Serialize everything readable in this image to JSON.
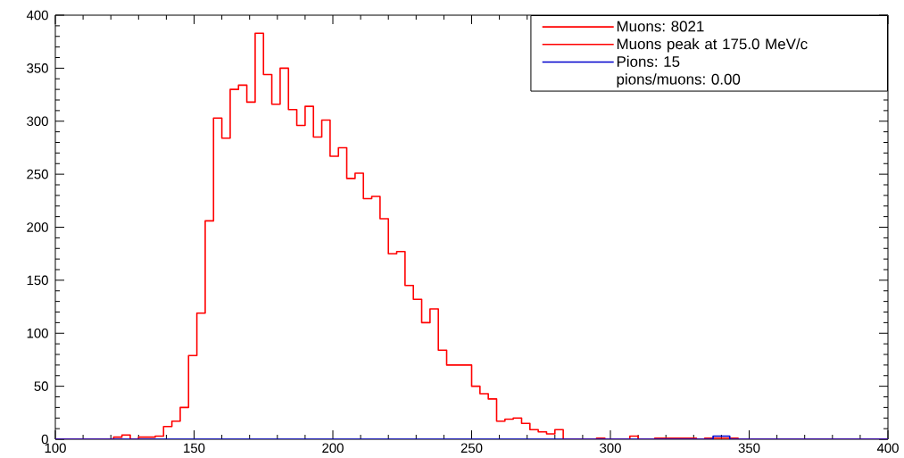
{
  "chart_data": {
    "type": "histogram",
    "bins": [
      100,
      103,
      106,
      109,
      112,
      115,
      118,
      121,
      124,
      127,
      130,
      133,
      136,
      139,
      142,
      145,
      148,
      151,
      154,
      157,
      160,
      163,
      166,
      169,
      172,
      175,
      178,
      181,
      184,
      187,
      190,
      193,
      196,
      199,
      202,
      205,
      208,
      211,
      214,
      217,
      220,
      223,
      226,
      229,
      232,
      235,
      238,
      241,
      244,
      247,
      250,
      253,
      256,
      259,
      262,
      265,
      268,
      271,
      274,
      277,
      280,
      283,
      286,
      289,
      292,
      295,
      298,
      301,
      304,
      307,
      310,
      313,
      316,
      319,
      322,
      325,
      328,
      331,
      334,
      337,
      340,
      343,
      346,
      349,
      352,
      355,
      358,
      361,
      364,
      367,
      370,
      373,
      376,
      379,
      382,
      385,
      388,
      391,
      394,
      397,
      400
    ],
    "series": [
      {
        "name": "Muons: 8021",
        "color": "#ff0000",
        "values": [
          0,
          0,
          0,
          0,
          0,
          0,
          0,
          2,
          4,
          0,
          2,
          2,
          3,
          12,
          17,
          30,
          79,
          119,
          206,
          303,
          284,
          330,
          334,
          318,
          383,
          344,
          316,
          350,
          311,
          296,
          314,
          285,
          301,
          267,
          275,
          246,
          251,
          227,
          229,
          208,
          175,
          177,
          145,
          132,
          110,
          123,
          84,
          70,
          70,
          70,
          50,
          43,
          38,
          17,
          19,
          20,
          15,
          9,
          7,
          5,
          9,
          0,
          0,
          0,
          0,
          1,
          0,
          0,
          0,
          3,
          0,
          0,
          1,
          1,
          1,
          1,
          1,
          0,
          1,
          1,
          1,
          1,
          0,
          0,
          0,
          0,
          0,
          0,
          0,
          0,
          0,
          0,
          0,
          0,
          0,
          0,
          0,
          0,
          0,
          0
        ]
      },
      {
        "name": "Pions: 15",
        "color": "#0000cc",
        "values": [
          0,
          0,
          0,
          0,
          0,
          0,
          0,
          0,
          0,
          0,
          0,
          0,
          0,
          0,
          0,
          0,
          0,
          0,
          0,
          0,
          0,
          0,
          0,
          0,
          0,
          0,
          0,
          0,
          0,
          0,
          0,
          0,
          0,
          0,
          0,
          0,
          0,
          0,
          0,
          0,
          0,
          0,
          0,
          0,
          0,
          0,
          0,
          0,
          0,
          0,
          0,
          0,
          0,
          0,
          0,
          0,
          0,
          0,
          0,
          0,
          0,
          0,
          0,
          0,
          0,
          0,
          0,
          0,
          0,
          0,
          0,
          0,
          0,
          0,
          0,
          0,
          0,
          0,
          0,
          3,
          3,
          0,
          0,
          0,
          0,
          0,
          0,
          0,
          0,
          0,
          0,
          0,
          0,
          0,
          0,
          0,
          0,
          0,
          0,
          0
        ]
      }
    ],
    "annotations": [
      "Muons peak at 175.0 MeV/c",
      "pions/muons: 0.00"
    ],
    "xlim": [
      100,
      400
    ],
    "xticks": [
      100,
      150,
      200,
      250,
      300,
      350,
      400
    ],
    "ylim": [
      0,
      400
    ],
    "yticks": [
      0,
      50,
      100,
      150,
      200,
      250,
      300,
      350,
      400
    ],
    "legend": "top right"
  }
}
